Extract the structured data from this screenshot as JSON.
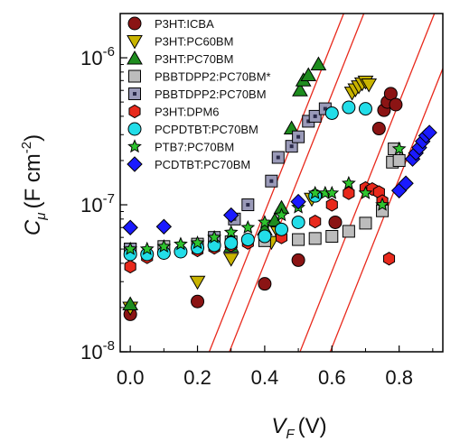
{
  "chart_data": {
    "type": "scatter",
    "title": "",
    "xlabel": {
      "main": "V",
      "sub": "F",
      "unit": "(V)"
    },
    "ylabel": {
      "main": "C",
      "sub": "μ",
      "unit_pre": "(F cm",
      "exp": "-2",
      "unit_post": ")"
    },
    "xlim": [
      -0.03,
      0.93
    ],
    "ylim": [
      1e-08,
      2e-06
    ],
    "xscale": "linear",
    "yscale": "log",
    "xticks": [
      0.0,
      0.2,
      0.4,
      0.6,
      0.8
    ],
    "xtick_labels": [
      "0.0",
      "0.2",
      "0.4",
      "0.6",
      "0.8"
    ],
    "yticks": [
      1e-08,
      1e-07,
      1e-06
    ],
    "ytick_labels": [
      {
        "base": "10",
        "exp": "-8"
      },
      {
        "base": "10",
        "exp": "-7"
      },
      {
        "base": "10",
        "exp": "-6"
      }
    ],
    "grid": false,
    "legend_position": "top-left",
    "reference_lines": [
      {
        "color": "#e8291c",
        "points": [
          [
            0.235,
            1e-08
          ],
          [
            0.635,
            2e-06
          ]
        ]
      },
      {
        "color": "#e8291c",
        "points": [
          [
            0.295,
            1e-08
          ],
          [
            0.695,
            2e-06
          ]
        ]
      },
      {
        "color": "#e8291c",
        "points": [
          [
            0.505,
            1e-08
          ],
          [
            0.905,
            2e-06
          ]
        ]
      },
      {
        "color": "#e8291c",
        "points": [
          [
            0.595,
            1e-08
          ],
          [
            0.995,
            2e-06
          ]
        ]
      }
    ],
    "series": [
      {
        "name": "P3HT:ICBA",
        "marker": "circle",
        "color": "#8b1414",
        "points": [
          [
            0.0,
            1.8e-08
          ],
          [
            0.2,
            2.2e-08
          ],
          [
            0.4,
            2.9e-08
          ],
          [
            0.5,
            4.2e-08
          ],
          [
            0.61,
            7.6e-08
          ],
          [
            0.74,
            3.3e-07
          ],
          [
            0.755,
            4.4e-07
          ],
          [
            0.765,
            5e-07
          ],
          [
            0.775,
            5.7e-07
          ],
          [
            0.79,
            4.8e-07
          ]
        ]
      },
      {
        "name": "P3HT:PC60BM",
        "marker": "triangle-down",
        "color": "#c9b400",
        "points": [
          [
            0.0,
            2e-08
          ],
          [
            0.2,
            3e-08
          ],
          [
            0.3,
            4.3e-08
          ],
          [
            0.42,
            5.6e-08
          ],
          [
            0.44,
            6.5e-08
          ],
          [
            0.54,
            1.1e-07
          ],
          [
            0.66,
            5.8e-07
          ],
          [
            0.67,
            6.1e-07
          ],
          [
            0.68,
            6.4e-07
          ],
          [
            0.69,
            6.7e-07
          ],
          [
            0.7,
            6.9e-07
          ],
          [
            0.71,
            6.6e-07
          ]
        ]
      },
      {
        "name": "P3HT:PC70BM",
        "marker": "triangle-up",
        "color": "#1e8c1e",
        "points": [
          [
            0.0,
            2.1e-08
          ],
          [
            0.3,
            5.2e-08
          ],
          [
            0.4,
            6.8e-08
          ],
          [
            0.43,
            7.8e-08
          ],
          [
            0.45,
            9.5e-08
          ],
          [
            0.48,
            3.3e-07
          ],
          [
            0.505,
            6e-07
          ],
          [
            0.515,
            7e-07
          ],
          [
            0.53,
            7.6e-07
          ],
          [
            0.56,
            9e-07
          ]
        ]
      },
      {
        "name": "PBBTDPP2:PC70BM*",
        "marker": "square",
        "color": "#bcbcbc",
        "points": [
          [
            0.0,
            5e-08
          ],
          [
            0.1,
            5.2e-08
          ],
          [
            0.2,
            5.4e-08
          ],
          [
            0.3,
            5.6e-08
          ],
          [
            0.4,
            5.7e-08
          ],
          [
            0.5,
            5.8e-08
          ],
          [
            0.55,
            5.9e-08
          ],
          [
            0.6,
            6.1e-08
          ],
          [
            0.65,
            6.6e-08
          ],
          [
            0.7,
            7.5e-08
          ],
          [
            0.75,
            9.1e-08
          ],
          [
            0.78,
            1.95e-07
          ],
          [
            0.785,
            2.4e-07
          ],
          [
            0.8,
            2e-07
          ]
        ]
      },
      {
        "name": "PBBTDPP2:PC70BM",
        "marker": "square-dot",
        "color": "#9a9ab8",
        "points": [
          [
            0.0,
            5e-08
          ],
          [
            0.25,
            6e-08
          ],
          [
            0.31,
            8e-08
          ],
          [
            0.35,
            1e-07
          ],
          [
            0.42,
            1.45e-07
          ],
          [
            0.44,
            2.1e-07
          ],
          [
            0.48,
            2.5e-07
          ],
          [
            0.5,
            2.9e-07
          ],
          [
            0.53,
            3.7e-07
          ],
          [
            0.55,
            4e-07
          ],
          [
            0.58,
            4.5e-07
          ]
        ]
      },
      {
        "name": "P3HT:DPM6",
        "marker": "hexagon",
        "color": "#e8291c",
        "points": [
          [
            0.0,
            3.8e-08
          ],
          [
            0.05,
            4.4e-08
          ],
          [
            0.1,
            4.7e-08
          ],
          [
            0.2,
            4.9e-08
          ],
          [
            0.25,
            5.1e-08
          ],
          [
            0.3,
            5.3e-08
          ],
          [
            0.35,
            5.5e-08
          ],
          [
            0.45,
            6e-08
          ],
          [
            0.55,
            7.7e-08
          ],
          [
            0.6,
            1e-07
          ],
          [
            0.65,
            1.2e-07
          ],
          [
            0.7,
            1.3e-07
          ],
          [
            0.72,
            1.28e-07
          ],
          [
            0.74,
            1.22e-07
          ],
          [
            0.75,
            1.06e-07
          ],
          [
            0.77,
            4.3e-08
          ]
        ]
      },
      {
        "name": "PCPDTBT:PC70BM",
        "marker": "circle",
        "color": "#22dde8",
        "points": [
          [
            0.0,
            4.6e-08
          ],
          [
            0.05,
            4.6e-08
          ],
          [
            0.1,
            4.7e-08
          ],
          [
            0.15,
            4.8e-08
          ],
          [
            0.2,
            5.1e-08
          ],
          [
            0.25,
            5.3e-08
          ],
          [
            0.3,
            5.5e-08
          ],
          [
            0.35,
            5.8e-08
          ],
          [
            0.4,
            6.1e-08
          ],
          [
            0.45,
            6.8e-08
          ],
          [
            0.5,
            7.6e-08
          ],
          [
            0.55,
            1.15e-07
          ],
          [
            0.6,
            4.2e-07
          ],
          [
            0.65,
            4.6e-07
          ],
          [
            0.7,
            4.5e-07
          ]
        ]
      },
      {
        "name": "PTB7:PC70BM",
        "marker": "star",
        "color": "#2ec42e",
        "points": [
          [
            0.0,
            5e-08
          ],
          [
            0.05,
            5e-08
          ],
          [
            0.1,
            5.2e-08
          ],
          [
            0.15,
            5.4e-08
          ],
          [
            0.2,
            5.5e-08
          ],
          [
            0.25,
            6e-08
          ],
          [
            0.3,
            6.5e-08
          ],
          [
            0.35,
            7e-08
          ],
          [
            0.4,
            7.6e-08
          ],
          [
            0.45,
            8.5e-08
          ],
          [
            0.5,
            9.6e-08
          ],
          [
            0.55,
            1.2e-07
          ],
          [
            0.58,
            1.2e-07
          ],
          [
            0.6,
            1.2e-07
          ],
          [
            0.65,
            1.4e-07
          ],
          [
            0.7,
            1.2e-07
          ],
          [
            0.75,
            1e-07
          ],
          [
            0.8,
            2.4e-07
          ]
        ]
      },
      {
        "name": "PCDTBT:PC70BM",
        "marker": "diamond",
        "color": "#1a1aff",
        "points": [
          [
            0.0,
            7e-08
          ],
          [
            0.1,
            7.1e-08
          ],
          [
            0.3,
            8.5e-08
          ],
          [
            0.5,
            1.05e-07
          ],
          [
            0.8,
            1.25e-07
          ],
          [
            0.82,
            1.4e-07
          ],
          [
            0.84,
            2.05e-07
          ],
          [
            0.85,
            2.25e-07
          ],
          [
            0.86,
            2.45e-07
          ],
          [
            0.87,
            2.7e-07
          ],
          [
            0.88,
            2.95e-07
          ],
          [
            0.89,
            3.1e-07
          ]
        ]
      }
    ]
  }
}
